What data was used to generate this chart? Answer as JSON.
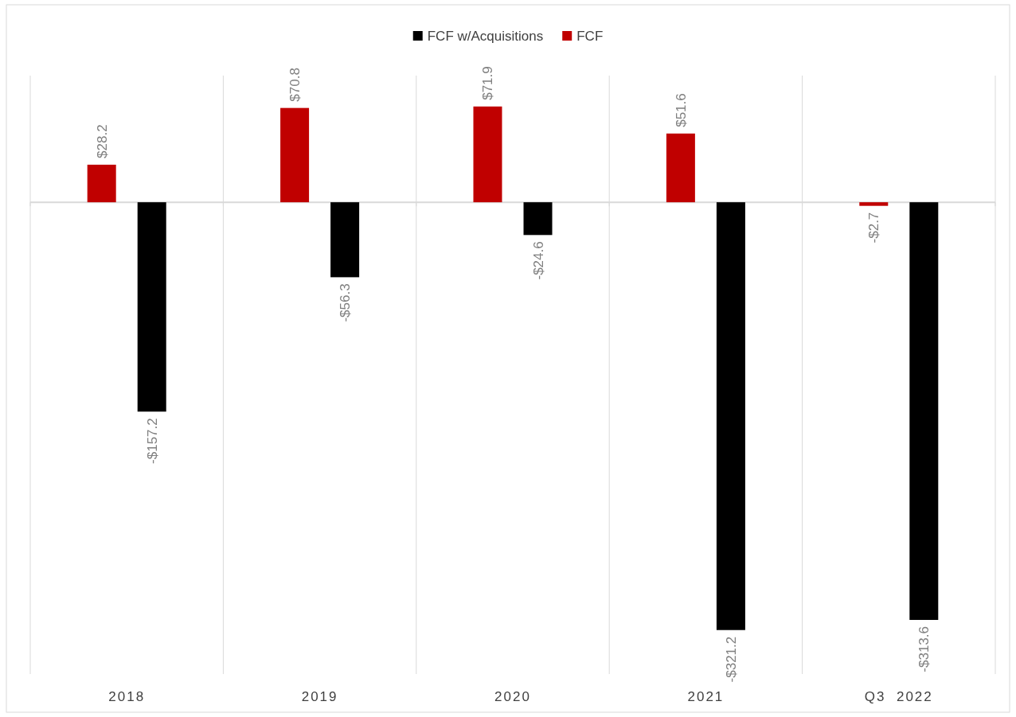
{
  "chart_data": {
    "type": "bar",
    "categories": [
      "2018",
      "2019",
      "2020",
      "2021",
      "Q3  2022"
    ],
    "series": [
      {
        "name": "FCF",
        "color": "#c00000",
        "values": [
          28.2,
          70.8,
          71.9,
          51.6,
          -2.7
        ],
        "value_labels": [
          "$28.2",
          "$70.8",
          "$71.9",
          "$51.6",
          "-$2.7"
        ]
      },
      {
        "name": "FCF w/Acquisitions",
        "color": "#000000",
        "values": [
          -157.2,
          -56.3,
          -24.6,
          -321.2,
          -313.6
        ],
        "value_labels": [
          "-$157.2",
          "-$56.3",
          "-$24.6",
          "-$321.2",
          "-$313.6"
        ]
      }
    ],
    "grid": "x",
    "legend": "top"
  }
}
